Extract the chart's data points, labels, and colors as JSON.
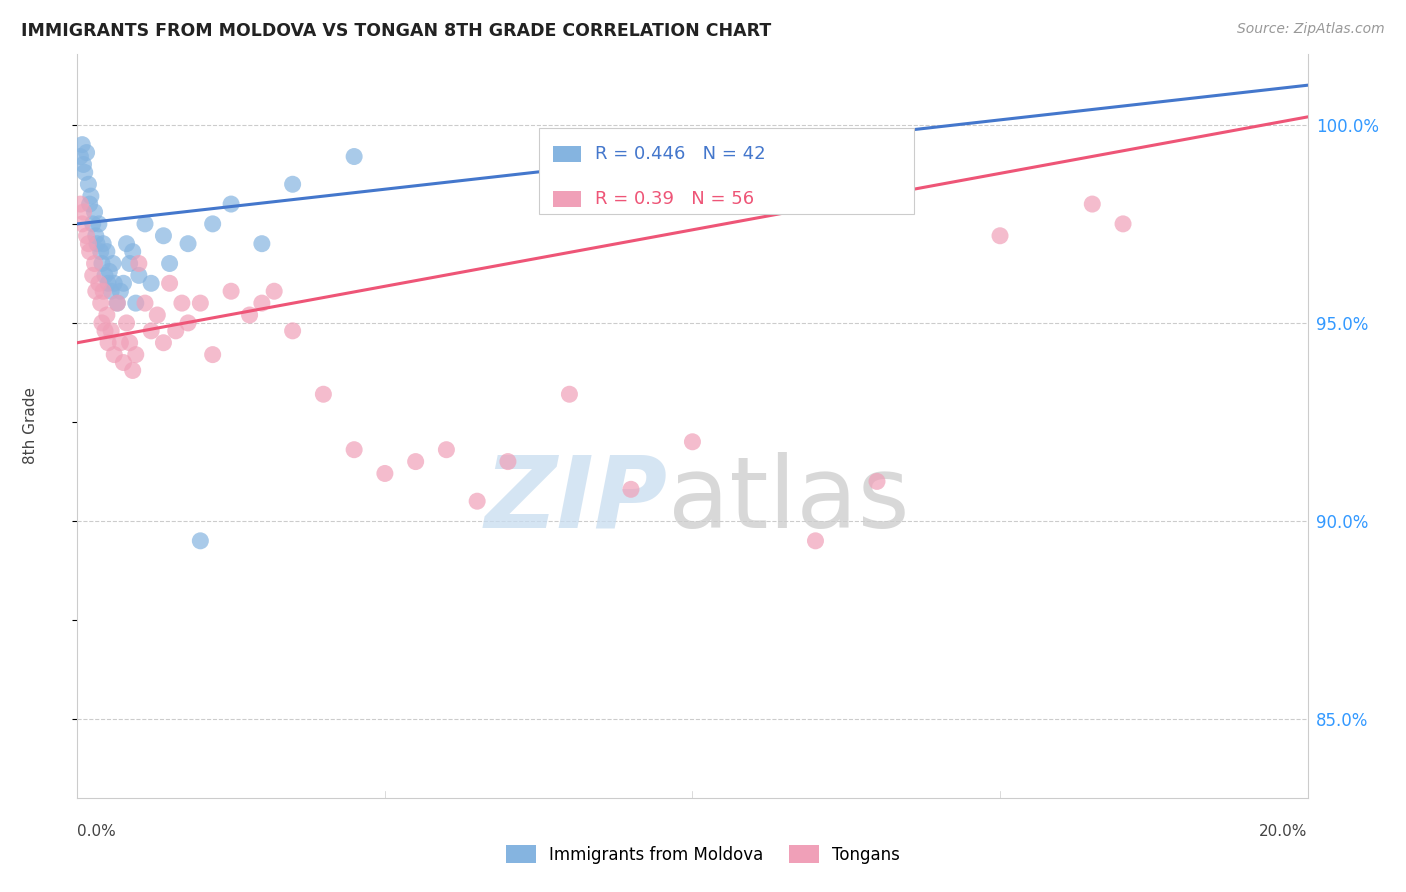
{
  "title": "IMMIGRANTS FROM MOLDOVA VS TONGAN 8TH GRADE CORRELATION CHART",
  "source": "Source: ZipAtlas.com",
  "ylabel": "8th Grade",
  "blue_label": "Immigrants from Moldova",
  "pink_label": "Tongans",
  "blue_R": 0.446,
  "blue_N": 42,
  "pink_R": 0.39,
  "pink_N": 56,
  "blue_color": "#85B4E0",
  "pink_color": "#F0A0B8",
  "blue_line_color": "#4477CC",
  "pink_line_color": "#EE5577",
  "xmin": 0.0,
  "xmax": 20.0,
  "ymin": 83.0,
  "ymax": 101.8,
  "right_yticks": [
    85.0,
    90.0,
    95.0,
    100.0
  ],
  "right_ytick_labels": [
    "85.0%",
    "90.0%",
    "95.0%",
    "100.0%"
  ],
  "blue_scatter_x": [
    0.05,
    0.08,
    0.1,
    0.12,
    0.15,
    0.18,
    0.2,
    0.22,
    0.25,
    0.28,
    0.3,
    0.32,
    0.35,
    0.38,
    0.4,
    0.42,
    0.45,
    0.48,
    0.5,
    0.52,
    0.55,
    0.58,
    0.6,
    0.65,
    0.7,
    0.75,
    0.8,
    0.85,
    0.9,
    0.95,
    1.0,
    1.1,
    1.2,
    1.5,
    1.8,
    2.2,
    2.5,
    3.0,
    3.5,
    4.5,
    1.4,
    2.0
  ],
  "blue_scatter_y": [
    99.2,
    99.5,
    99.0,
    98.8,
    99.3,
    98.5,
    98.0,
    98.2,
    97.5,
    97.8,
    97.2,
    97.0,
    97.5,
    96.8,
    96.5,
    97.0,
    96.2,
    96.8,
    96.0,
    96.3,
    95.8,
    96.5,
    96.0,
    95.5,
    95.8,
    96.0,
    97.0,
    96.5,
    96.8,
    95.5,
    96.2,
    97.5,
    96.0,
    96.5,
    97.0,
    97.5,
    98.0,
    97.0,
    98.5,
    99.2,
    97.2,
    89.5
  ],
  "pink_scatter_x": [
    0.05,
    0.08,
    0.1,
    0.15,
    0.18,
    0.2,
    0.25,
    0.28,
    0.3,
    0.35,
    0.38,
    0.4,
    0.42,
    0.45,
    0.48,
    0.5,
    0.55,
    0.6,
    0.65,
    0.7,
    0.75,
    0.8,
    0.85,
    0.9,
    0.95,
    1.0,
    1.1,
    1.2,
    1.3,
    1.4,
    1.5,
    1.6,
    1.7,
    1.8,
    2.0,
    2.2,
    2.5,
    2.8,
    3.0,
    3.2,
    3.5,
    4.0,
    4.5,
    5.0,
    5.5,
    6.0,
    6.5,
    7.0,
    8.0,
    9.0,
    10.0,
    12.0,
    13.0,
    15.0,
    16.5,
    17.0
  ],
  "pink_scatter_y": [
    98.0,
    97.5,
    97.8,
    97.2,
    97.0,
    96.8,
    96.2,
    96.5,
    95.8,
    96.0,
    95.5,
    95.0,
    95.8,
    94.8,
    95.2,
    94.5,
    94.8,
    94.2,
    95.5,
    94.5,
    94.0,
    95.0,
    94.5,
    93.8,
    94.2,
    96.5,
    95.5,
    94.8,
    95.2,
    94.5,
    96.0,
    94.8,
    95.5,
    95.0,
    95.5,
    94.2,
    95.8,
    95.2,
    95.5,
    95.8,
    94.8,
    93.2,
    91.8,
    91.2,
    91.5,
    91.8,
    90.5,
    91.5,
    93.2,
    90.8,
    92.0,
    89.5,
    91.0,
    97.2,
    98.0,
    97.5
  ]
}
